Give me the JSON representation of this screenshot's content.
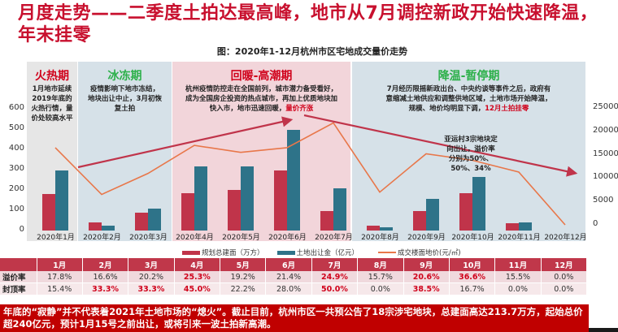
{
  "title": "月度走势——二季度土拍达最高峰，地市从7月调控新政开始快速降温，年末挂零",
  "subtitle": "图：2020年1-12月杭州市区宅地成交量价走势",
  "phases": [
    {
      "title": "火热期",
      "color": "#d0021b",
      "bg": "#e6e6e6",
      "desc": "1月地市延续2019年底的火热行情，量价处较高水平",
      "highlight": ""
    },
    {
      "title": "冰冻期",
      "color": "#2cb04a",
      "bg": "#d6e1e8",
      "desc": "疫情影响下地市冻结，地块出让中止，3月初恢复土拍",
      "highlight": ""
    },
    {
      "title": "回暖-高潮期",
      "color": "#d0021b",
      "bg": "#f2d5da",
      "desc": "杭州疫情防控走在全国前列，城市潜力备受看好，成为全国房企投资的热点城市，再加上优质地块加快入市，地市迅速回暖，",
      "highlight": "量价齐涨"
    },
    {
      "title": "降温-暂停期",
      "color": "#2cb04a",
      "bg": "#d6e1e8",
      "desc": "7月经历限摇新政出台、中央约谈等事件之后，政府有意缩减土地供应和调整供地区域，土地市场开始降温，规模、地价均明显下调，",
      "highlight": "12月土拍挂零"
    }
  ],
  "annotation": "亚运村3宗地块定向出让，溢价率分别为50%、50%、34%",
  "legend": {
    "series1": "规划总建面（万方）",
    "series2": "土地出让金（亿元）",
    "series3": "成交楼面地价(元/㎡)"
  },
  "colors": {
    "series1": "#c0344a",
    "series2": "#2e7389",
    "series3": "#e8774a",
    "trend": "#c0344a",
    "title": "#c8102e",
    "footer_bg": "#c00000"
  },
  "chart_data": {
    "type": "bar",
    "title": "图：2020年1-12月杭州市区宅地成交量价走势",
    "categories": [
      "2020年1月",
      "2020年2月",
      "2020年3月",
      "2020年4月",
      "2020年5月",
      "2020年6月",
      "2020年7月",
      "2020年8月",
      "2020年9月",
      "2020年10月",
      "2020年11月",
      "2020年12月"
    ],
    "series": [
      {
        "name": "规划总建面（万方）",
        "type": "bar",
        "axis": "left",
        "values": [
          180,
          40,
          90,
          183,
          200,
          295,
          95,
          25,
          95,
          185,
          38,
          0
        ]
      },
      {
        "name": "土地出让金（亿元）",
        "type": "bar",
        "axis": "left",
        "values": [
          295,
          25,
          108,
          315,
          317,
          495,
          210,
          18,
          158,
          265,
          42,
          0
        ]
      },
      {
        "name": "成交楼面地价(元/㎡)",
        "type": "line",
        "axis": "right",
        "values": [
          16500,
          6500,
          11000,
          17000,
          15500,
          16500,
          21800,
          7000,
          15200,
          13800,
          11300,
          0
        ]
      }
    ],
    "left_axis": {
      "ticks": [
        0,
        100,
        200,
        300,
        400,
        500,
        600
      ],
      "ylim": [
        0,
        600
      ]
    },
    "right_axis": {
      "ticks": [
        0,
        5000,
        10000,
        15000,
        20000,
        25000
      ],
      "ylim": [
        0,
        25000
      ]
    },
    "legend_position": "bottom",
    "grid": false
  },
  "table": {
    "headers": [
      "",
      "1月",
      "2月",
      "3月",
      "4月",
      "5月",
      "6月",
      "7月",
      "8月",
      "9月",
      "10月",
      "11月",
      "12月"
    ],
    "rows": [
      {
        "label": "溢价率",
        "values": [
          "17.8%",
          "16.6%",
          "20.2%",
          "25.3%",
          "19.2%",
          "21.4%",
          "24.9%",
          "15.7%",
          "20.6%",
          "36.6%",
          "15.5%",
          "0.0%"
        ],
        "hot": [
          false,
          false,
          false,
          true,
          false,
          false,
          true,
          false,
          true,
          true,
          false,
          false
        ]
      },
      {
        "label": "封顶率",
        "values": [
          "15.4%",
          "33.3%",
          "33.3%",
          "45.0%",
          "22.2%",
          "28.0%",
          "50.0%",
          "0.0%",
          "38.5%",
          "16.7%",
          "0.0%",
          "0.0%"
        ],
        "hot": [
          false,
          true,
          true,
          true,
          false,
          false,
          true,
          false,
          true,
          false,
          false,
          false
        ]
      }
    ]
  },
  "footer": "年底的“寂静”并不代表着2021年土地市场的“熄火”。截止目前，杭州市区一共预公告了18宗涉宅地块，总建面高达213.7万方，起始总价超240亿元，预计1月15号之前出让，或将引来一波土拍新高潮。"
}
